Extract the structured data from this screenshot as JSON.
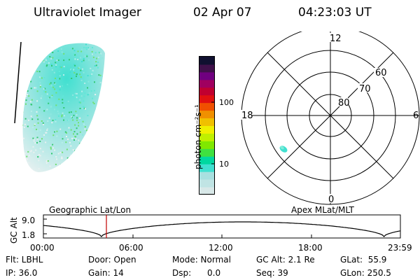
{
  "header": {
    "instrument": "Ultraviolet Imager",
    "date": "02 Apr 07",
    "time": "04:23:03 UT"
  },
  "colorbar": {
    "label": "photon cm⁻²s⁻¹",
    "ticks": [
      "100",
      "10"
    ],
    "scale": "log",
    "colors": [
      "#d8e8e8",
      "#c0e4e4",
      "#a8e0e0",
      "#40e0d0",
      "#00d8a0",
      "#40e040",
      "#80e800",
      "#c0f000",
      "#f0f000",
      "#f0c000",
      "#f09000",
      "#f05000",
      "#e01010",
      "#c00030",
      "#a00060",
      "#700080",
      "#40104a",
      "#101030"
    ]
  },
  "polar_plot": {
    "mlt_labels": [
      "12",
      "18",
      "6",
      "0"
    ],
    "lat_labels": [
      "60",
      "70",
      "80"
    ]
  },
  "timeline": {
    "left_title": "Geographic Lat/Lon",
    "right_title": "Apex MLat/MLT",
    "ylabel": "GC Alt",
    "y_ticks": [
      "9.0",
      "1.8"
    ],
    "x_ticks": [
      "00:00",
      "06:00",
      "12:00",
      "18:00",
      "23:59"
    ],
    "marker_time": "04:23",
    "marker_color": "#c00000"
  },
  "status": {
    "flt": "Flt: LBHL",
    "ip": "IP: 36.0",
    "door": "Door: Open",
    "gain": "Gain: 14",
    "mode": "Mode: Normal",
    "dsp": "Dsp:      0.0",
    "gc_alt": "GC Alt: 2.1 Re",
    "seq": "Seq: 39",
    "glat": "GLat:  55.9",
    "glon": "GLon: 250.5"
  }
}
